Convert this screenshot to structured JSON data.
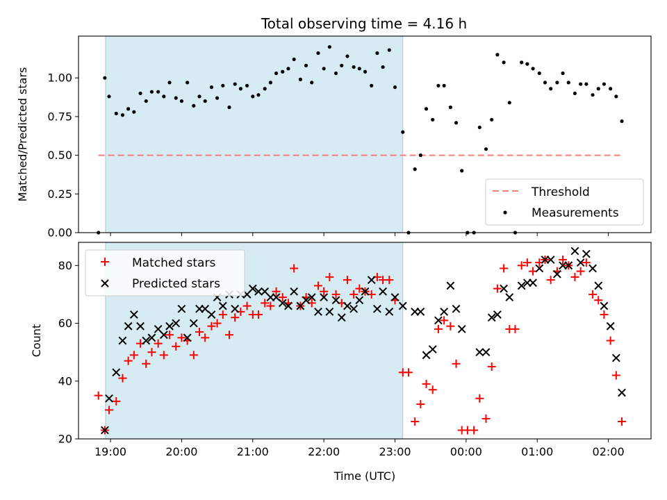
{
  "figure": {
    "title": "Total observing time = 4.16 h"
  },
  "chart_data": [
    {
      "type": "scatter",
      "panel": "top",
      "ylabel": "Matched/Predicted stars",
      "xlabel": "",
      "ylim": [
        0,
        1.27
      ],
      "xlim_hours": [
        18.55,
        26.6
      ],
      "yticks": [
        0.0,
        0.25,
        0.5,
        0.75,
        1.0
      ],
      "ytick_labels": [
        "0.00",
        "0.25",
        "0.50",
        "0.75",
        "1.00"
      ],
      "shaded_span_hours": [
        18.93,
        23.11
      ],
      "threshold": {
        "name": "Threshold",
        "value": 0.5,
        "x_range_hours": [
          18.83,
          26.2
        ],
        "color": "#f08080"
      },
      "legend_position": "lower-right",
      "series": [
        {
          "name": "Measurements",
          "color": "#000000",
          "x_hours": [
            18.83,
            18.92,
            18.98,
            19.08,
            19.17,
            19.25,
            19.33,
            19.42,
            19.5,
            19.58,
            19.67,
            19.75,
            19.83,
            19.92,
            20.0,
            20.08,
            20.17,
            20.25,
            20.33,
            20.42,
            20.5,
            20.58,
            20.67,
            20.75,
            20.83,
            20.92,
            21.0,
            21.08,
            21.17,
            21.25,
            21.33,
            21.42,
            21.5,
            21.58,
            21.67,
            21.75,
            21.83,
            21.92,
            22.0,
            22.08,
            22.17,
            22.25,
            22.33,
            22.42,
            22.5,
            22.58,
            22.67,
            22.75,
            22.83,
            22.92,
            23.0,
            23.11,
            23.19,
            23.28,
            23.36,
            23.44,
            23.53,
            23.61,
            23.69,
            23.78,
            23.86,
            23.94,
            24.02,
            24.11,
            24.19,
            24.28,
            24.36,
            24.44,
            24.53,
            24.61,
            24.69,
            24.78,
            24.86,
            24.94,
            25.03,
            25.11,
            25.19,
            25.28,
            25.36,
            25.44,
            25.53,
            25.61,
            25.69,
            25.78,
            25.86,
            25.94,
            26.03,
            26.11,
            26.19
          ],
          "values": [
            0.0,
            1.0,
            0.88,
            0.77,
            0.76,
            0.8,
            0.78,
            0.9,
            0.85,
            0.91,
            0.91,
            0.88,
            0.97,
            0.87,
            0.85,
            0.97,
            0.82,
            0.88,
            0.85,
            0.94,
            0.87,
            0.95,
            0.81,
            0.96,
            0.93,
            0.95,
            0.88,
            0.89,
            0.93,
            0.97,
            1.03,
            1.04,
            1.06,
            1.12,
            0.99,
            1.08,
            0.97,
            1.16,
            1.06,
            1.2,
            1.03,
            1.08,
            1.14,
            1.07,
            1.06,
            1.04,
            0.95,
            1.16,
            1.07,
            1.18,
            0.94,
            0.65,
            0.0,
            0.41,
            0.5,
            0.8,
            0.73,
            0.95,
            0.95,
            0.81,
            0.71,
            0.4,
            0.0,
            0.0,
            0.68,
            0.54,
            0.73,
            1.15,
            1.1,
            0.84,
            0.0,
            1.1,
            1.09,
            1.06,
            1.03,
            0.97,
            0.93,
            0.97,
            1.03,
            0.97,
            0.9,
            0.96,
            0.96,
            0.89,
            0.93,
            0.96,
            0.93,
            0.88,
            0.72
          ]
        }
      ]
    },
    {
      "type": "scatter",
      "panel": "bottom",
      "xlabel": "Time (UTC)",
      "ylabel": "Count",
      "ylim": [
        20,
        88
      ],
      "xlim_hours": [
        18.55,
        26.6
      ],
      "yticks": [
        20,
        40,
        60,
        80
      ],
      "ytick_labels": [
        "20",
        "40",
        "60",
        "80"
      ],
      "xticks_hours": [
        19,
        20,
        21,
        22,
        23,
        24,
        25,
        26
      ],
      "xtick_labels": [
        "19:00",
        "20:00",
        "21:00",
        "22:00",
        "23:00",
        "00:00",
        "01:00",
        "02:00"
      ],
      "shaded_span_hours": [
        18.93,
        23.11
      ],
      "legend_position": "upper-left",
      "series": [
        {
          "name": "Matched stars",
          "marker": "plus",
          "color": "#ff0000",
          "x_hours": [
            18.83,
            18.92,
            18.98,
            19.08,
            19.17,
            19.25,
            19.33,
            19.42,
            19.5,
            19.58,
            19.67,
            19.75,
            19.83,
            19.92,
            20.0,
            20.08,
            20.17,
            20.25,
            20.33,
            20.42,
            20.5,
            20.58,
            20.67,
            20.75,
            20.83,
            20.92,
            21.0,
            21.08,
            21.17,
            21.25,
            21.33,
            21.42,
            21.5,
            21.58,
            21.67,
            21.75,
            21.83,
            21.92,
            22.0,
            22.08,
            22.17,
            22.25,
            22.33,
            22.42,
            22.5,
            22.58,
            22.67,
            22.75,
            22.83,
            22.92,
            23.0,
            23.11,
            23.19,
            23.28,
            23.36,
            23.44,
            23.53,
            23.61,
            23.69,
            23.78,
            23.86,
            23.94,
            24.02,
            24.11,
            24.19,
            24.28,
            24.36,
            24.44,
            24.53,
            24.61,
            24.69,
            24.78,
            24.86,
            24.94,
            25.03,
            25.11,
            25.19,
            25.28,
            25.36,
            25.44,
            25.53,
            25.61,
            25.69,
            25.78,
            25.86,
            25.94,
            26.03,
            26.11,
            26.19
          ],
          "values": [
            35,
            23,
            30,
            33,
            41,
            47,
            49,
            53,
            46,
            50,
            53,
            49,
            56,
            52,
            55,
            54,
            49,
            57,
            55,
            59,
            60,
            63,
            56,
            62,
            64,
            66,
            63,
            63,
            67,
            66,
            71,
            69,
            67,
            79,
            66,
            69,
            67,
            73,
            71,
            76,
            70,
            67,
            75,
            70,
            72,
            71,
            70,
            76,
            75,
            75,
            68,
            43,
            43,
            26,
            32,
            39,
            37,
            58,
            61,
            59,
            46,
            23,
            23,
            23,
            34,
            27,
            45,
            72,
            79,
            58,
            58,
            80,
            81,
            78,
            81,
            82,
            75,
            78,
            82,
            80,
            76,
            78,
            81,
            70,
            68,
            63,
            54,
            42,
            26
          ]
        },
        {
          "name": "Predicted stars",
          "marker": "x",
          "color": "#000000",
          "x_hours": [
            18.92,
            18.98,
            19.08,
            19.17,
            19.25,
            19.33,
            19.42,
            19.5,
            19.58,
            19.67,
            19.75,
            19.83,
            19.92,
            20.0,
            20.08,
            20.17,
            20.25,
            20.33,
            20.42,
            20.5,
            20.58,
            20.67,
            20.75,
            20.83,
            20.92,
            21.0,
            21.08,
            21.17,
            21.25,
            21.33,
            21.42,
            21.5,
            21.58,
            21.67,
            21.75,
            21.83,
            21.92,
            22.0,
            22.08,
            22.17,
            22.25,
            22.33,
            22.42,
            22.5,
            22.58,
            22.67,
            22.75,
            22.83,
            22.92,
            23.0,
            23.11,
            23.28,
            23.36,
            23.44,
            23.53,
            23.61,
            23.69,
            23.78,
            23.86,
            23.94,
            24.19,
            24.28,
            24.36,
            24.44,
            24.53,
            24.61,
            24.78,
            24.86,
            24.94,
            25.03,
            25.11,
            25.19,
            25.28,
            25.36,
            25.44,
            25.53,
            25.61,
            25.69,
            25.78,
            25.86,
            25.94,
            26.03,
            26.11,
            26.19
          ],
          "values": [
            23,
            34,
            43,
            54,
            59,
            63,
            59,
            54,
            55,
            58,
            56,
            59,
            60,
            65,
            55,
            60,
            65,
            65,
            63,
            69,
            66,
            70,
            65,
            70,
            70,
            72,
            71,
            71,
            69,
            69,
            67,
            66,
            71,
            66,
            68,
            69,
            64,
            69,
            64,
            68,
            62,
            66,
            65,
            68,
            71,
            75,
            65,
            71,
            64,
            69,
            66,
            64,
            64,
            49,
            51,
            61,
            64,
            73,
            65,
            58,
            50,
            50,
            62,
            63,
            72,
            69,
            73,
            74,
            74,
            79,
            82,
            82,
            77,
            80,
            80,
            85,
            81,
            84,
            79,
            73,
            66,
            59,
            48,
            36
          ]
        }
      ]
    }
  ]
}
